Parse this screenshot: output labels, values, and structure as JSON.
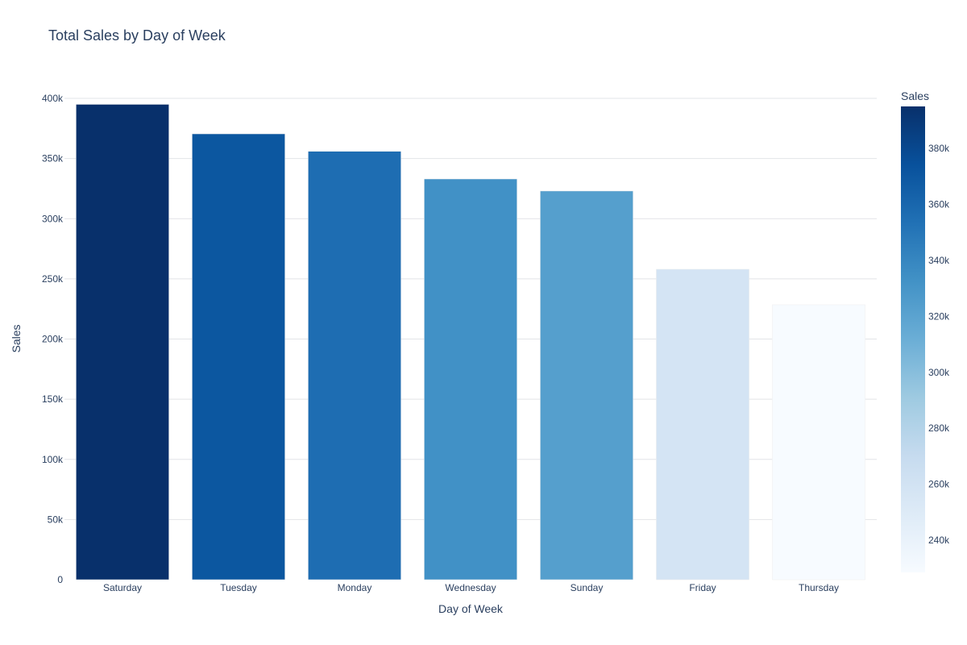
{
  "chart_data": {
    "type": "bar",
    "title": "Total Sales by Day of Week",
    "xlabel": "Day of Week",
    "ylabel": "Sales",
    "categories": [
      "Saturday",
      "Tuesday",
      "Monday",
      "Wednesday",
      "Sunday",
      "Friday",
      "Thursday"
    ],
    "values": [
      395000,
      370500,
      356000,
      333000,
      323000,
      258000,
      228500
    ],
    "ylim": [
      0,
      400000
    ],
    "yticks": [
      0,
      50000,
      100000,
      150000,
      200000,
      250000,
      300000,
      350000,
      400000
    ],
    "ytick_labels": [
      "0",
      "50k",
      "100k",
      "150k",
      "200k",
      "250k",
      "300k",
      "350k",
      "400k"
    ],
    "grid": true,
    "legend": "none",
    "colorbar": {
      "title": "Sales",
      "placement": "right",
      "range": [
        228500,
        395000
      ],
      "ticks": [
        240000,
        260000,
        280000,
        300000,
        320000,
        340000,
        360000,
        380000
      ],
      "tick_labels": [
        "240k",
        "260k",
        "280k",
        "300k",
        "320k",
        "340k",
        "360k",
        "380k"
      ],
      "colorscale": [
        "#f7fbff",
        "#deebf7",
        "#c6dbef",
        "#9ecae1",
        "#6baed6",
        "#4292c6",
        "#2171b5",
        "#08519c",
        "#08306b"
      ]
    }
  }
}
